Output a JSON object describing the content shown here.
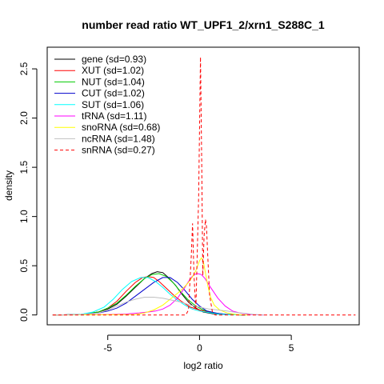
{
  "chart_data": {
    "type": "line",
    "title": "number read ratio WT_UPF1_2/xrn1_S288C_1",
    "xlabel": "log2 ratio",
    "ylabel": "density",
    "xlim": [
      -8.3,
      8.7
    ],
    "ylim": [
      -0.1,
      2.72
    ],
    "xticks": [
      -5,
      0,
      5
    ],
    "xtick_labels": [
      "-5",
      "0",
      "5"
    ],
    "yticks": [
      0.0,
      0.5,
      1.0,
      1.5,
      2.0,
      2.5
    ],
    "ytick_labels": [
      "0.0",
      "0.5",
      "1.0",
      "1.5",
      "2.0",
      "2.5"
    ],
    "grid": false,
    "legend_position": "top-left",
    "series": [
      {
        "name": "gene (sd=0.93)",
        "color": "#000000",
        "dash": false,
        "x": [
          -8,
          -6.5,
          -5.5,
          -5,
          -4.5,
          -4,
          -3.5,
          -3,
          -2.6,
          -2.3,
          -2,
          -1.7,
          -1.3,
          -1,
          -0.6,
          -0.2,
          0.2,
          0.8,
          1.5,
          2.5
        ],
        "y": [
          0,
          0.005,
          0.03,
          0.06,
          0.11,
          0.19,
          0.28,
          0.37,
          0.42,
          0.44,
          0.43,
          0.38,
          0.3,
          0.22,
          0.13,
          0.07,
          0.03,
          0.01,
          0.003,
          0
        ]
      },
      {
        "name": "XUT (sd=1.02)",
        "color": "#ff0000",
        "dash": false,
        "x": [
          -8,
          -6.5,
          -5.5,
          -5,
          -4.5,
          -4,
          -3.5,
          -3.1,
          -2.8,
          -2.5,
          -2.2,
          -1.8,
          -1.4,
          -1,
          -0.5,
          0,
          0.5,
          1,
          1.5,
          2.5
        ],
        "y": [
          0,
          0.005,
          0.03,
          0.07,
          0.14,
          0.24,
          0.33,
          0.38,
          0.39,
          0.38,
          0.34,
          0.27,
          0.2,
          0.14,
          0.08,
          0.05,
          0.03,
          0.015,
          0.005,
          0
        ]
      },
      {
        "name": "NUT (sd=1.04)",
        "color": "#00cc00",
        "dash": false,
        "x": [
          -8,
          -6.5,
          -5.5,
          -5,
          -4.5,
          -4,
          -3.5,
          -3,
          -2.6,
          -2.2,
          -1.8,
          -1.4,
          -1,
          -0.6,
          -0.2,
          0.2,
          0.8,
          1.5,
          2.5
        ],
        "y": [
          0,
          0.005,
          0.03,
          0.07,
          0.12,
          0.2,
          0.29,
          0.37,
          0.41,
          0.42,
          0.39,
          0.32,
          0.23,
          0.15,
          0.09,
          0.05,
          0.02,
          0.005,
          0
        ]
      },
      {
        "name": "CUT (sd=1.02)",
        "color": "#0000cc",
        "dash": false,
        "x": [
          -8,
          -6.5,
          -5.5,
          -5,
          -4.5,
          -4,
          -3.5,
          -3,
          -2.5,
          -2,
          -1.6,
          -1.2,
          -0.8,
          -0.4,
          0,
          0.4,
          1,
          1.6,
          2.5
        ],
        "y": [
          0,
          0.005,
          0.02,
          0.04,
          0.07,
          0.12,
          0.19,
          0.26,
          0.33,
          0.38,
          0.38,
          0.33,
          0.25,
          0.16,
          0.09,
          0.04,
          0.015,
          0.005,
          0
        ]
      },
      {
        "name": "SUT (sd=1.06)",
        "color": "#00ffff",
        "dash": false,
        "x": [
          -8,
          -6.5,
          -5.8,
          -5.2,
          -4.7,
          -4.2,
          -3.7,
          -3.2,
          -2.8,
          -2.4,
          -2,
          -1.6,
          -1.2,
          -0.8,
          -0.4,
          0,
          0.5,
          1,
          1.5,
          2.5
        ],
        "y": [
          0,
          0.005,
          0.03,
          0.08,
          0.16,
          0.26,
          0.34,
          0.38,
          0.38,
          0.34,
          0.28,
          0.21,
          0.15,
          0.1,
          0.06,
          0.04,
          0.025,
          0.01,
          0.004,
          0
        ]
      },
      {
        "name": "tRNA (sd=1.11)",
        "color": "#ff00ff",
        "dash": false,
        "x": [
          -8,
          -6,
          -5,
          -4,
          -3.3,
          -2.8,
          -2.4,
          -2,
          -1.6,
          -1.2,
          -0.8,
          -0.5,
          -0.3,
          -0.1,
          0.1,
          0.3,
          0.6,
          1,
          1.4,
          1.8,
          2.2,
          2.8,
          3.5
        ],
        "y": [
          0,
          0.002,
          0.005,
          0.01,
          0.02,
          0.03,
          0.04,
          0.06,
          0.1,
          0.17,
          0.28,
          0.37,
          0.41,
          0.42,
          0.41,
          0.37,
          0.28,
          0.17,
          0.09,
          0.04,
          0.02,
          0.005,
          0
        ]
      },
      {
        "name": "snoRNA (sd=0.68)",
        "color": "#ffff00",
        "dash": false,
        "x": [
          -8,
          -3.5,
          -3,
          -2.5,
          -2,
          -1.6,
          -1.2,
          -0.9,
          -0.6,
          -0.4,
          -0.2,
          0,
          0.1,
          0.2,
          0.3,
          0.45,
          0.6,
          0.8,
          1.1,
          1.5,
          2,
          2.6
        ],
        "y": [
          0,
          0.005,
          0.02,
          0.05,
          0.1,
          0.16,
          0.22,
          0.27,
          0.33,
          0.38,
          0.45,
          0.55,
          0.58,
          0.55,
          0.45,
          0.3,
          0.18,
          0.1,
          0.05,
          0.02,
          0.005,
          0
        ]
      },
      {
        "name": "ncRNA (sd=1.48)",
        "color": "#c0c0c0",
        "dash": false,
        "x": [
          -8,
          -6.5,
          -5.5,
          -5,
          -4.5,
          -4,
          -3.5,
          -3,
          -2.5,
          -2,
          -1.5,
          -1,
          -0.5,
          0,
          0.5,
          1,
          1.5,
          2,
          2.5,
          3,
          3.5
        ],
        "y": [
          0,
          0.005,
          0.02,
          0.05,
          0.09,
          0.13,
          0.16,
          0.18,
          0.18,
          0.17,
          0.15,
          0.13,
          0.1,
          0.08,
          0.06,
          0.05,
          0.04,
          0.025,
          0.015,
          0.005,
          0
        ]
      },
      {
        "name": "snRNA (sd=0.27)",
        "color": "#ff0000",
        "dash": true,
        "x": [
          -8,
          -0.75,
          -0.6,
          -0.45,
          -0.38,
          -0.3,
          -0.2,
          -0.05,
          0.05,
          0.12,
          0.18,
          0.25,
          0.32,
          0.38,
          0.45,
          0.55,
          0.7,
          0.85,
          8.5
        ],
        "y": [
          0,
          0,
          0.05,
          0.6,
          0.93,
          0.4,
          0.05,
          1.2,
          2.62,
          1.5,
          0.4,
          0.8,
          0.97,
          0.9,
          0.6,
          0.2,
          0.03,
          0,
          0
        ]
      }
    ]
  }
}
